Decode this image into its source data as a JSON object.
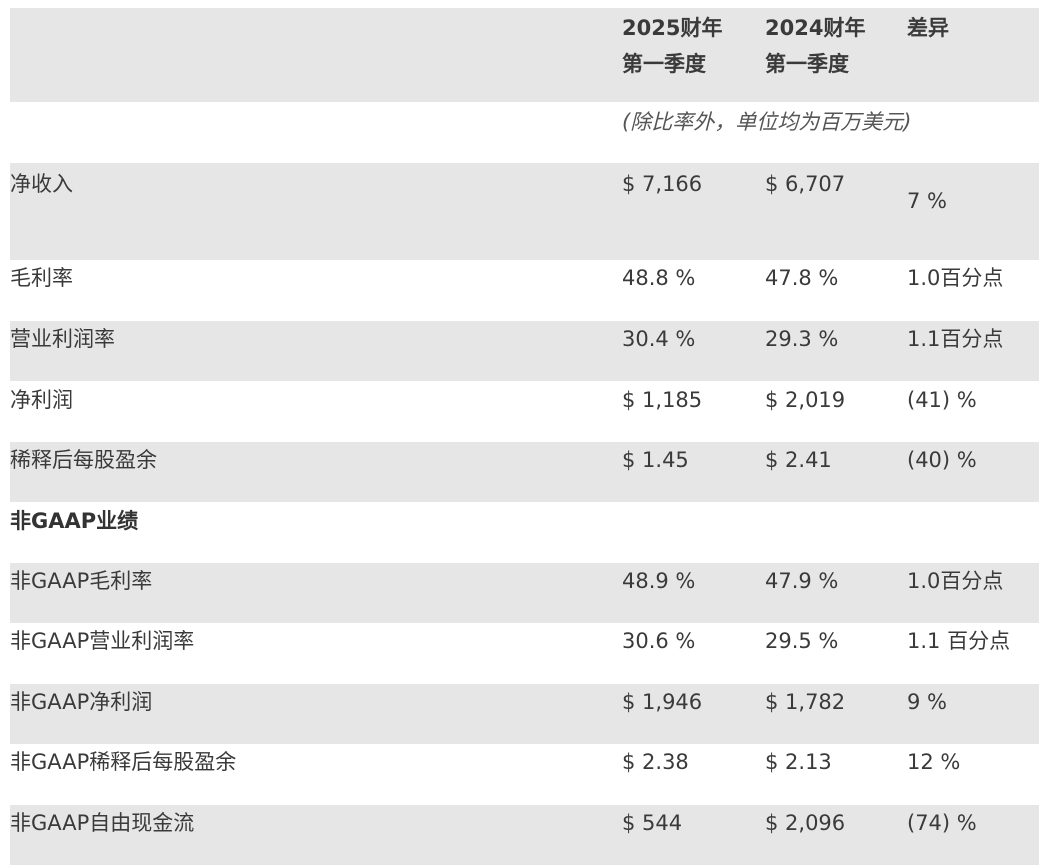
{
  "header": {
    "col1_line1": "2025财年",
    "col1_line2": "第一季度",
    "col2_line1": "2024财年",
    "col2_line2": "第一季度",
    "col3": "差异"
  },
  "unit_note": "(除比率外，单位均为百万美元)",
  "gaap_rows": [
    {
      "label": "净收入",
      "fy2025": "$ 7,166",
      "fy2024": "$ 6,707",
      "diff": "7 %"
    },
    {
      "label": "毛利率",
      "fy2025": "48.8 %",
      "fy2024": "47.8 %",
      "diff": "1.0百分点"
    },
    {
      "label": "营业利润率",
      "fy2025": "30.4 %",
      "fy2024": "29.3 %",
      "diff": "1.1百分点"
    },
    {
      "label": "净利润",
      "fy2025": "$ 1,185",
      "fy2024": "$ 2,019",
      "diff": "(41) %"
    },
    {
      "label": "稀释后每股盈余",
      "fy2025": "$ 1.45",
      "fy2024": "$ 2.41",
      "diff": "(40) %"
    }
  ],
  "section_title": "非GAAP业绩",
  "nongaap_rows": [
    {
      "label": "非GAAP毛利率",
      "fy2025": "48.9 %",
      "fy2024": "47.9 %",
      "diff": "1.0百分点"
    },
    {
      "label": "非GAAP营业利润率",
      "fy2025": "30.6 %",
      "fy2024": "29.5 %",
      "diff": "1.1 百分点"
    },
    {
      "label": "非GAAP净利润",
      "fy2025": "$ 1,946",
      "fy2024": "$ 1,782",
      "diff": "9 %"
    },
    {
      "label": "非GAAP稀释后每股盈余",
      "fy2025": "$ 2.38",
      "fy2024": "$ 2.13",
      "diff": "12 %"
    },
    {
      "label": "非GAAP自由现金流",
      "fy2025": "$ 544",
      "fy2024": "$ 2,096",
      "diff": "(74) %"
    }
  ]
}
